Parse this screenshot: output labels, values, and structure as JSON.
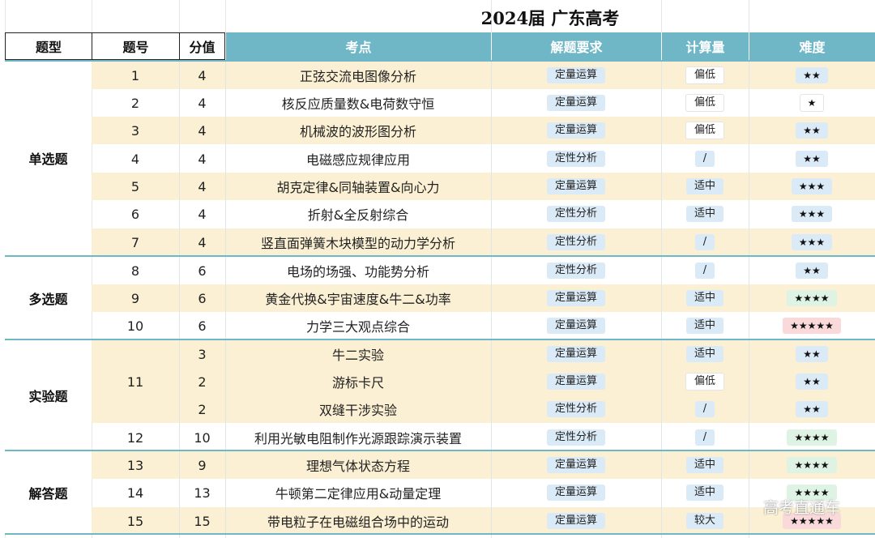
{
  "title": "2024届 广东高考",
  "headers": {
    "type": "题型",
    "number": "题号",
    "score": "分值",
    "topic": "考点",
    "requirement": "解题要求",
    "calc": "计算量",
    "difficulty": "难度"
  },
  "categories": [
    "单选题",
    "多选题",
    "实验题",
    "解答题"
  ],
  "rows": [
    {
      "num": "1",
      "score": "4",
      "topic": "正弦交流电图像分析",
      "req": "定量运算",
      "calc": "偏低",
      "diff": "★★"
    },
    {
      "num": "2",
      "score": "4",
      "topic": "核反应质量数&电荷数守恒",
      "req": "定量运算",
      "calc": "偏低",
      "diff": "★"
    },
    {
      "num": "3",
      "score": "4",
      "topic": "机械波的波形图分析",
      "req": "定量运算",
      "calc": "偏低",
      "diff": "★★"
    },
    {
      "num": "4",
      "score": "4",
      "topic": "电磁感应规律应用",
      "req": "定性分析",
      "calc": "/",
      "diff": "★★"
    },
    {
      "num": "5",
      "score": "4",
      "topic": "胡克定律&同轴装置&向心力",
      "req": "定量运算",
      "calc": "适中",
      "diff": "★★★"
    },
    {
      "num": "6",
      "score": "4",
      "topic": "折射&全反射综合",
      "req": "定性分析",
      "calc": "适中",
      "diff": "★★★"
    },
    {
      "num": "7",
      "score": "4",
      "topic": "竖直面弹簧木块模型的动力学分析",
      "req": "定性分析",
      "calc": "/",
      "diff": "★★★"
    },
    {
      "num": "8",
      "score": "6",
      "topic": "电场的场强、功能势分析",
      "req": "定性分析",
      "calc": "/",
      "diff": "★★"
    },
    {
      "num": "9",
      "score": "6",
      "topic": "黄金代换&宇宙速度&牛二&功率",
      "req": "定量运算",
      "calc": "适中",
      "diff": "★★★★"
    },
    {
      "num": "10",
      "score": "6",
      "topic": "力学三大观点综合",
      "req": "定量运算",
      "calc": "适中",
      "diff": "★★★★★"
    },
    {
      "num": "",
      "score": "3",
      "topic": "牛二实验",
      "req": "定量运算",
      "calc": "适中",
      "diff": "★★"
    },
    {
      "num": "11",
      "score": "2",
      "topic": "游标卡尺",
      "req": "定量运算",
      "calc": "偏低",
      "diff": "★★"
    },
    {
      "num": "",
      "score": "2",
      "topic": "双缝干涉实验",
      "req": "定性分析",
      "calc": "/",
      "diff": "★★"
    },
    {
      "num": "12",
      "score": "10",
      "topic": "利用光敏电阻制作光源跟踪演示装置",
      "req": "定性分析",
      "calc": "/",
      "diff": "★★★★"
    },
    {
      "num": "13",
      "score": "9",
      "topic": "理想气体状态方程",
      "req": "定量运算",
      "calc": "适中",
      "diff": "★★★★"
    },
    {
      "num": "14",
      "score": "13",
      "topic": "牛顿第二定律应用&动量定理",
      "req": "定量运算",
      "calc": "适中",
      "diff": "★★★★"
    },
    {
      "num": "15",
      "score": "15",
      "topic": "带电粒子在电磁组合场中的运动",
      "req": "定量运算",
      "calc": "较大",
      "diff": "★★★★★"
    }
  ],
  "watermark": "高考直通车",
  "colors": {
    "header_teal": "#6fb7c6",
    "row_shade": "#fbf0d3",
    "badge_blue": "#dbeaf7",
    "badge_green": "#dff3e4",
    "badge_red": "#f9d9d9"
  }
}
